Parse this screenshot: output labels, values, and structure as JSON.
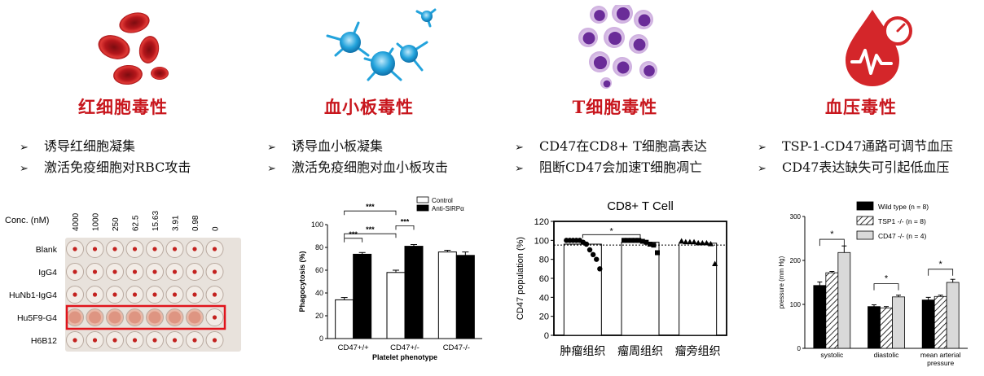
{
  "columns": [
    {
      "icon": "red-blood-cells-icon",
      "title": "红细胞毒性",
      "bullets": [
        "诱导红细胞凝集",
        "激活免疫细胞对RBC攻击"
      ]
    },
    {
      "icon": "platelets-icon",
      "title": "血小板毒性",
      "bullets": [
        "诱导血小板凝集",
        "激活免疫细胞对血小板攻击"
      ]
    },
    {
      "icon": "t-cells-icon",
      "title": "T细胞毒性",
      "bullets": [
        "CD47在CD8+ T细胞高表达",
        "阻断CD47会加速T细胞凋亡"
      ]
    },
    {
      "icon": "blood-pressure-drop-icon",
      "title": "血压毒性",
      "bullets": [
        "TSP-1-CD47通路可调节血压",
        "CD47表达缺失可引起低血压"
      ]
    }
  ],
  "plate": {
    "conc_label": "Conc. (nM)",
    "concentrations": [
      "4000",
      "1000",
      "250",
      "62.5",
      "15.63",
      "3.91",
      "0.98",
      "0"
    ],
    "rows": [
      "Blank",
      "IgG4",
      "HuNb1-IgG4",
      "Hu5F9-G4",
      "H6B12"
    ],
    "highlighted_row": "Hu5F9-G4",
    "highlight_color": "#e0141c"
  },
  "chart_data": [
    {
      "type": "bar",
      "ylabel": "Phagocytosis (%)",
      "xlabel": "Platelet phenotype",
      "ylim": [
        0,
        100
      ],
      "yticks": [
        "0",
        "20",
        "40",
        "60",
        "80",
        "100"
      ],
      "categories": [
        "CD47+/+",
        "CD47+/-",
        "CD47-/-"
      ],
      "series": [
        {
          "name": "Control",
          "values": [
            34,
            58,
            76
          ],
          "errors": [
            2,
            2,
            1.5
          ],
          "color": "#ffffff"
        },
        {
          "name": "Anti-SIRPα",
          "values": [
            74,
            81,
            73
          ],
          "errors": [
            1.5,
            1.5,
            3
          ],
          "color": "#000000"
        }
      ],
      "significance": [
        "***",
        "***",
        "***",
        "***"
      ]
    },
    {
      "type": "scatter",
      "title": "CD8+ T Cell",
      "ylabel": "CD47 population (%)",
      "ylim": [
        0,
        120
      ],
      "yticks": [
        "0",
        "20",
        "40",
        "60",
        "80",
        "100",
        "120"
      ],
      "categories": [
        "肿瘤组织",
        "瘤周组织",
        "瘤旁组织"
      ],
      "bar_values": [
        96,
        98,
        97
      ],
      "reference_line": 95,
      "points": [
        [
          100,
          100,
          100,
          100,
          100,
          98,
          96,
          90,
          85,
          80,
          70
        ],
        [
          100,
          100,
          100,
          100,
          100,
          99,
          98,
          96,
          95,
          87
        ],
        [
          99,
          98,
          98,
          98,
          97,
          97,
          97,
          96,
          75
        ]
      ],
      "significance": "*"
    },
    {
      "type": "bar",
      "ylabel": "pressure (mm Hg)",
      "ylim": [
        0,
        300
      ],
      "yticks": [
        "0",
        "100",
        "200",
        "300"
      ],
      "categories": [
        "systolic",
        "diastolic",
        "mean arterial pressure"
      ],
      "series": [
        {
          "name": "Wild type (n = 8)",
          "values": [
            143,
            95,
            110
          ],
          "errors": [
            8,
            4,
            6
          ],
          "color": "#000000"
        },
        {
          "name": "TSP1 -/- (n = 8)",
          "values": [
            172,
            92,
            118
          ],
          "errors": [
            3,
            3,
            3
          ],
          "color": "hatched"
        },
        {
          "name": "CD47 -/- (n = 4)",
          "values": [
            218,
            117,
            150
          ],
          "errors": [
            15,
            4,
            7
          ],
          "color": "#d9d9d9"
        }
      ],
      "significance": [
        "*",
        "*",
        "*"
      ]
    }
  ],
  "colors": {
    "title_red": "#c8161d",
    "cell_red": "#b3161b",
    "platelet_blue": "#23a3dc",
    "tcell_purple": "#7a3fa6"
  }
}
